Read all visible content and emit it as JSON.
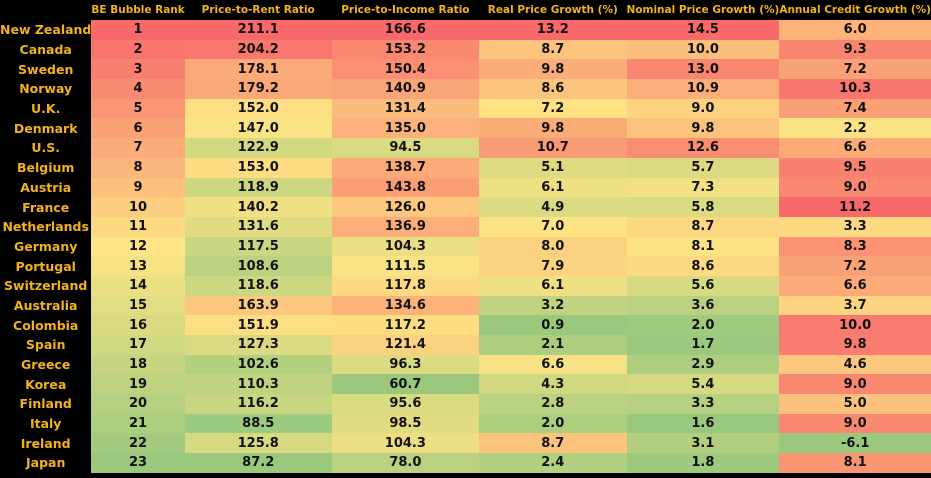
{
  "chart_data": {
    "type": "heatmap",
    "columns": [
      "",
      "BE Bubble Rank",
      "Price-to-Rent Ratio",
      "Price-to-Income Ratio",
      "Real Price Growth (%)",
      "Nominal Price Growth (%)",
      "Annual Credit Growth (%)"
    ],
    "rows": [
      {
        "country": "New Zealand",
        "values": [
          "1",
          "211.1",
          "166.6",
          "13.2",
          "14.5",
          "6.0"
        ]
      },
      {
        "country": "Canada",
        "values": [
          "2",
          "204.2",
          "153.2",
          "8.7",
          "10.0",
          "9.3"
        ]
      },
      {
        "country": "Sweden",
        "values": [
          "3",
          "178.1",
          "150.4",
          "9.8",
          "13.0",
          "7.2"
        ]
      },
      {
        "country": "Norway",
        "values": [
          "4",
          "179.2",
          "140.9",
          "8.6",
          "10.9",
          "10.3"
        ]
      },
      {
        "country": "U.K.",
        "values": [
          "5",
          "152.0",
          "131.4",
          "7.2",
          "9.0",
          "7.4"
        ]
      },
      {
        "country": "Denmark",
        "values": [
          "6",
          "147.0",
          "135.0",
          "9.8",
          "9.8",
          "2.2"
        ]
      },
      {
        "country": "U.S.",
        "values": [
          "7",
          "122.9",
          "94.5",
          "10.7",
          "12.6",
          "6.6"
        ]
      },
      {
        "country": "Belgium",
        "values": [
          "8",
          "153.0",
          "138.7",
          "5.1",
          "5.7",
          "9.5"
        ]
      },
      {
        "country": "Austria",
        "values": [
          "9",
          "118.9",
          "143.8",
          "6.1",
          "7.3",
          "9.0"
        ]
      },
      {
        "country": "France",
        "values": [
          "10",
          "140.2",
          "126.0",
          "4.9",
          "5.8",
          "11.2"
        ]
      },
      {
        "country": "Netherlands",
        "values": [
          "11",
          "131.6",
          "136.9",
          "7.0",
          "8.7",
          "3.3"
        ]
      },
      {
        "country": "Germany",
        "values": [
          "12",
          "117.5",
          "104.3",
          "8.0",
          "8.1",
          "8.3"
        ]
      },
      {
        "country": "Portugal",
        "values": [
          "13",
          "108.6",
          "111.5",
          "7.9",
          "8.6",
          "7.2"
        ]
      },
      {
        "country": "Switzerland",
        "values": [
          "14",
          "118.6",
          "117.8",
          "6.1",
          "5.6",
          "6.6"
        ]
      },
      {
        "country": "Australia",
        "values": [
          "15",
          "163.9",
          "134.6",
          "3.2",
          "3.6",
          "3.7"
        ]
      },
      {
        "country": "Colombia",
        "values": [
          "16",
          "151.9",
          "117.2",
          "0.9",
          "2.0",
          "10.0"
        ]
      },
      {
        "country": "Spain",
        "values": [
          "17",
          "127.3",
          "121.4",
          "2.1",
          "1.7",
          "9.8"
        ]
      },
      {
        "country": "Greece",
        "values": [
          "18",
          "102.6",
          "96.3",
          "6.6",
          "2.9",
          "4.6"
        ]
      },
      {
        "country": "Korea",
        "values": [
          "19",
          "110.3",
          "60.7",
          "4.3",
          "5.4",
          "9.0"
        ]
      },
      {
        "country": "Finland",
        "values": [
          "20",
          "116.2",
          "95.6",
          "2.8",
          "3.3",
          "5.0"
        ]
      },
      {
        "country": "Italy",
        "values": [
          "21",
          "88.5",
          "98.5",
          "2.0",
          "1.6",
          "9.0"
        ]
      },
      {
        "country": "Ireland",
        "values": [
          "22",
          "125.8",
          "104.3",
          "8.7",
          "3.1",
          "-6.1"
        ]
      },
      {
        "country": "Japan",
        "values": [
          "23",
          "87.2",
          "78.0",
          "2.4",
          "1.8",
          "8.1"
        ]
      }
    ],
    "color_scale": {
      "low": "#9ac97e",
      "mid": "#fde484",
      "high": "#f8696b"
    },
    "background": "#000000",
    "header_color": "#f2b21a"
  }
}
